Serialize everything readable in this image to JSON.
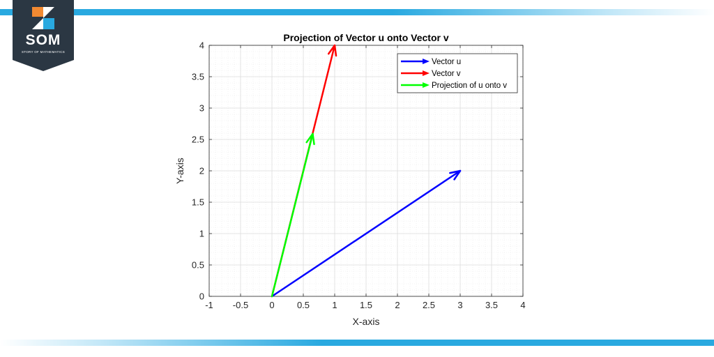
{
  "brand": {
    "name": "SOM",
    "tagline": "STORY OF MATHEMATICS",
    "colors": {
      "badge": "#2b3743",
      "accent": "#29a9e0",
      "orange": "#f28a32"
    }
  },
  "chart_data": {
    "type": "line",
    "title": "Projection of Vector u onto Vector v",
    "xlabel": "X-axis",
    "ylabel": "Y-axis",
    "xlim": [
      -1,
      4
    ],
    "ylim": [
      0,
      4
    ],
    "x_ticks": [
      "-1",
      "-0.5",
      "0",
      "0.5",
      "1",
      "1.5",
      "2",
      "2.5",
      "3",
      "3.5",
      "4"
    ],
    "y_ticks": [
      "0",
      "0.5",
      "1",
      "1.5",
      "2",
      "2.5",
      "3",
      "3.5",
      "4"
    ],
    "grid": true,
    "minor_grid": true,
    "legend_position": "top-right",
    "series": [
      {
        "name": "Vector u",
        "color": "#0000ff",
        "from": [
          0,
          0
        ],
        "to": [
          3,
          2
        ]
      },
      {
        "name": "Vector v",
        "color": "#ff0000",
        "from": [
          0,
          0
        ],
        "to": [
          1,
          4
        ]
      },
      {
        "name": "Projection of u onto v",
        "color": "#00ff00",
        "from": [
          0,
          0
        ],
        "to": [
          0.65,
          2.59
        ]
      }
    ]
  }
}
